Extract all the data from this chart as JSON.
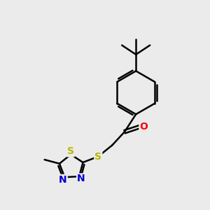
{
  "background_color": "#ebebeb",
  "bond_color": "#000000",
  "bond_width": 1.8,
  "atom_colors": {
    "S": "#b8b800",
    "N": "#0000cc",
    "O": "#ff0000",
    "C": "#000000"
  },
  "font_size_atom": 10,
  "font_size_methyl": 8.5,
  "figsize": [
    3.0,
    3.0
  ],
  "dpi": 100,
  "xlim": [
    0,
    10
  ],
  "ylim": [
    0,
    10
  ]
}
